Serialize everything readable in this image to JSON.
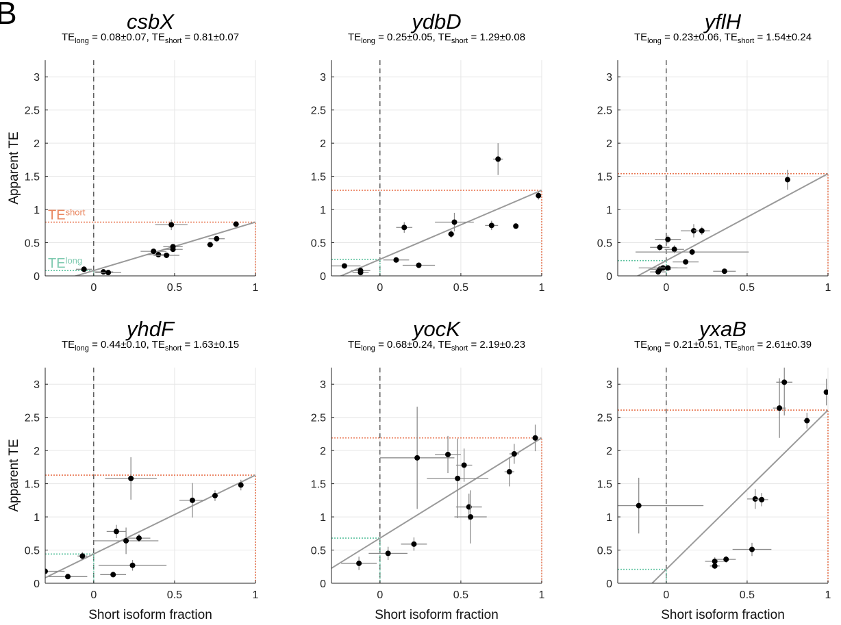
{
  "panel_letter": "B",
  "colors": {
    "fit_line": "#9a9a9a",
    "errorbar": "#8c8c8c",
    "point": "#000000",
    "te_short_line": "#e8744f",
    "te_long_line": "#5cc29f",
    "grid": "#e6e6e6",
    "axis": "#222222"
  },
  "chart_data": [
    {
      "type": "scatter",
      "title": "csbX",
      "subtitle": {
        "te_long": "0.08±0.07",
        "te_short": "0.81±0.07"
      },
      "xlabel": "",
      "ylabel": "Apparent TE",
      "xlim": [
        -0.3,
        1
      ],
      "ylim": [
        0,
        3.25
      ],
      "xticks": [
        0,
        0.5,
        1
      ],
      "yticks": [
        0,
        0.5,
        1,
        1.5,
        2,
        2.5,
        3
      ],
      "xticklabels": [
        "0",
        "0.5",
        "1"
      ],
      "yticklabels": [
        "0",
        "0.5",
        "1",
        "1.5",
        "2",
        "2.5",
        "3"
      ],
      "grid": true,
      "te_long": 0.08,
      "te_short": 0.81,
      "annotations": {
        "te_short": {
          "main": "TE",
          "sub": "short"
        },
        "te_long": {
          "main": "TE",
          "sub": "long"
        }
      },
      "points": [
        {
          "x": -0.06,
          "y": 0.1,
          "xerr": 0.05,
          "yerr": 0.02
        },
        {
          "x": 0.06,
          "y": 0.06,
          "xerr": 0.06,
          "yerr": 0.02
        },
        {
          "x": 0.09,
          "y": 0.05,
          "xerr": 0.08,
          "yerr": 0.02
        },
        {
          "x": 0.48,
          "y": 0.77,
          "xerr": 0.1,
          "yerr": 0.08
        },
        {
          "x": 0.37,
          "y": 0.37,
          "xerr": 0.08,
          "yerr": 0.03
        },
        {
          "x": 0.4,
          "y": 0.32,
          "xerr": 0.07,
          "yerr": 0.03
        },
        {
          "x": 0.45,
          "y": 0.31,
          "xerr": 0.08,
          "yerr": 0.03
        },
        {
          "x": 0.49,
          "y": 0.44,
          "xerr": 0.06,
          "yerr": 0.03
        },
        {
          "x": 0.49,
          "y": 0.4,
          "xerr": 0.06,
          "yerr": 0.03
        },
        {
          "x": 0.72,
          "y": 0.47,
          "xerr": 0.02,
          "yerr": 0.03
        },
        {
          "x": 0.76,
          "y": 0.56,
          "xerr": 0.05,
          "yerr": 0.03
        },
        {
          "x": 0.88,
          "y": 0.78,
          "xerr": 0.02,
          "yerr": 0.04
        }
      ]
    },
    {
      "type": "scatter",
      "title": "ydbD",
      "subtitle": {
        "te_long": "0.25±0.05",
        "te_short": "1.29±0.08"
      },
      "xlabel": "",
      "ylabel": "",
      "xlim": [
        -0.3,
        1
      ],
      "ylim": [
        0,
        3.25
      ],
      "xticks": [
        0,
        0.5,
        1
      ],
      "yticks": [
        0,
        0.5,
        1,
        1.5,
        2,
        2.5,
        3
      ],
      "xticklabels": [
        "0",
        "0.5",
        "1"
      ],
      "yticklabels": [
        "0",
        "0.5",
        "1",
        "1.5",
        "2",
        "2.5",
        "3"
      ],
      "grid": true,
      "te_long": 0.25,
      "te_short": 1.29,
      "points": [
        {
          "x": -0.22,
          "y": 0.15,
          "xerr": 0.1,
          "yerr": 0.03
        },
        {
          "x": -0.12,
          "y": 0.08,
          "xerr": 0.06,
          "yerr": 0.03
        },
        {
          "x": -0.12,
          "y": 0.05,
          "xerr": 0.05,
          "yerr": 0.03
        },
        {
          "x": 0.1,
          "y": 0.24,
          "xerr": 0.08,
          "yerr": 0.04
        },
        {
          "x": 0.24,
          "y": 0.16,
          "xerr": 0.1,
          "yerr": 0.03
        },
        {
          "x": 0.15,
          "y": 0.73,
          "xerr": 0.05,
          "yerr": 0.08
        },
        {
          "x": 0.44,
          "y": 0.63,
          "xerr": 0.02,
          "yerr": 0.06
        },
        {
          "x": 0.46,
          "y": 0.81,
          "xerr": 0.12,
          "yerr": 0.14
        },
        {
          "x": 0.69,
          "y": 0.76,
          "xerr": 0.04,
          "yerr": 0.07
        },
        {
          "x": 0.73,
          "y": 1.76,
          "xerr": 0.03,
          "yerr": 0.24
        },
        {
          "x": 0.84,
          "y": 0.75,
          "xerr": 0.01,
          "yerr": 0.04
        },
        {
          "x": 0.98,
          "y": 1.21,
          "xerr": 0.01,
          "yerr": 0.06
        }
      ]
    },
    {
      "type": "scatter",
      "title": "yflH",
      "subtitle": {
        "te_long": "0.23±0.06",
        "te_short": "1.54±0.24"
      },
      "xlabel": "",
      "ylabel": "",
      "xlim": [
        -0.3,
        1
      ],
      "ylim": [
        0,
        3.25
      ],
      "xticks": [
        0,
        0.5,
        1
      ],
      "yticks": [
        0,
        0.5,
        1,
        1.5,
        2,
        2.5,
        3
      ],
      "xticklabels": [
        "0",
        "0.5",
        "1"
      ],
      "yticklabels": [
        "0",
        "0.5",
        "1",
        "1.5",
        "2",
        "2.5",
        "3"
      ],
      "grid": true,
      "te_long": 0.23,
      "te_short": 1.54,
      "points": [
        {
          "x": -0.05,
          "y": 0.06,
          "xerr": 0.05,
          "yerr": 0.02
        },
        {
          "x": -0.04,
          "y": 0.1,
          "xerr": 0.07,
          "yerr": 0.03
        },
        {
          "x": -0.02,
          "y": 0.12,
          "xerr": 0.15,
          "yerr": 0.03
        },
        {
          "x": 0.01,
          "y": 0.12,
          "xerr": 0.06,
          "yerr": 0.03
        },
        {
          "x": -0.04,
          "y": 0.43,
          "xerr": 0.06,
          "yerr": 0.05
        },
        {
          "x": 0.01,
          "y": 0.55,
          "xerr": 0.08,
          "yerr": 0.06
        },
        {
          "x": 0.05,
          "y": 0.4,
          "xerr": 0.06,
          "yerr": 0.06
        },
        {
          "x": 0.12,
          "y": 0.21,
          "xerr": 0.08,
          "yerr": 0.04
        },
        {
          "x": 0.16,
          "y": 0.36,
          "xerr": 0.35,
          "yerr": 0.05
        },
        {
          "x": 0.17,
          "y": 0.68,
          "xerr": 0.08,
          "yerr": 0.1
        },
        {
          "x": 0.22,
          "y": 0.68,
          "xerr": 0.05,
          "yerr": 0.06
        },
        {
          "x": 0.36,
          "y": 0.07,
          "xerr": 0.07,
          "yerr": 0.02
        },
        {
          "x": 0.75,
          "y": 1.45,
          "xerr": 0.01,
          "yerr": 0.15
        }
      ]
    },
    {
      "type": "scatter",
      "title": "yhdF",
      "subtitle": {
        "te_long": "0.44±0.10",
        "te_short": "1.63±0.15"
      },
      "xlabel": "Short isoform fraction",
      "ylabel": "Apparent TE",
      "xlim": [
        -0.3,
        1
      ],
      "ylim": [
        0,
        3.25
      ],
      "xticks": [
        0,
        0.5,
        1
      ],
      "yticks": [
        0,
        0.5,
        1,
        1.5,
        2,
        2.5,
        3
      ],
      "xticklabels": [
        "0",
        "0.5",
        "1"
      ],
      "yticklabels": [
        "0",
        "0.5",
        "1",
        "1.5",
        "2",
        "2.5",
        "3"
      ],
      "grid": true,
      "te_long": 0.44,
      "te_short": 1.63,
      "points": [
        {
          "x": -0.3,
          "y": 0.18,
          "xerr": 0.12,
          "yerr": 0.04
        },
        {
          "x": -0.16,
          "y": 0.1,
          "xerr": 0.12,
          "yerr": 0.03
        },
        {
          "x": -0.07,
          "y": 0.41,
          "xerr": 0.03,
          "yerr": 0.06
        },
        {
          "x": 0.12,
          "y": 0.13,
          "xerr": 0.08,
          "yerr": 0.04
        },
        {
          "x": 0.14,
          "y": 0.78,
          "xerr": 0.06,
          "yerr": 0.1
        },
        {
          "x": 0.2,
          "y": 0.64,
          "xerr": 0.2,
          "yerr": 0.2
        },
        {
          "x": 0.23,
          "y": 1.58,
          "xerr": 0.16,
          "yerr": 0.32
        },
        {
          "x": 0.24,
          "y": 0.27,
          "xerr": 0.21,
          "yerr": 0.08
        },
        {
          "x": 0.28,
          "y": 0.68,
          "xerr": 0.07,
          "yerr": 0.06
        },
        {
          "x": 0.61,
          "y": 1.25,
          "xerr": 0.08,
          "yerr": 0.26
        },
        {
          "x": 0.75,
          "y": 1.32,
          "xerr": 0.02,
          "yerr": 0.08
        },
        {
          "x": 0.91,
          "y": 1.48,
          "xerr": 0.01,
          "yerr": 0.08
        }
      ]
    },
    {
      "type": "scatter",
      "title": "yocK",
      "subtitle": {
        "te_long": "0.68±0.24",
        "te_short": "2.19±0.23"
      },
      "xlabel": "Short isoform fraction",
      "ylabel": "",
      "xlim": [
        -0.3,
        1
      ],
      "ylim": [
        0,
        3.25
      ],
      "xticks": [
        0,
        0.5,
        1
      ],
      "yticks": [
        0,
        0.5,
        1,
        1.5,
        2,
        2.5,
        3
      ],
      "xticklabels": [
        "0",
        "0.5",
        "1"
      ],
      "yticklabels": [
        "0",
        "0.5",
        "1",
        "1.5",
        "2",
        "2.5",
        "3"
      ],
      "grid": true,
      "te_long": 0.68,
      "te_short": 2.19,
      "points": [
        {
          "x": -0.13,
          "y": 0.3,
          "xerr": 0.11,
          "yerr": 0.1
        },
        {
          "x": 0.05,
          "y": 0.45,
          "xerr": 0.12,
          "yerr": 0.1
        },
        {
          "x": 0.21,
          "y": 0.59,
          "xerr": 0.08,
          "yerr": 0.1
        },
        {
          "x": 0.23,
          "y": 1.89,
          "xerr": 0.23,
          "yerr": 0.77
        },
        {
          "x": 0.42,
          "y": 1.94,
          "xerr": 0.08,
          "yerr": 0.28
        },
        {
          "x": 0.48,
          "y": 1.58,
          "xerr": 0.19,
          "yerr": 0.6
        },
        {
          "x": 0.52,
          "y": 1.78,
          "xerr": 0.05,
          "yerr": 0.25
        },
        {
          "x": 0.55,
          "y": 1.15,
          "xerr": 0.08,
          "yerr": 0.2
        },
        {
          "x": 0.56,
          "y": 1.0,
          "xerr": 0.1,
          "yerr": 0.4
        },
        {
          "x": 0.8,
          "y": 1.68,
          "xerr": 0.03,
          "yerr": 0.22
        },
        {
          "x": 0.83,
          "y": 1.95,
          "xerr": 0.03,
          "yerr": 0.15
        },
        {
          "x": 0.96,
          "y": 2.19,
          "xerr": 0.02,
          "yerr": 0.2
        }
      ]
    },
    {
      "type": "scatter",
      "title": "yxaB",
      "subtitle": {
        "te_long": "0.21±0.51",
        "te_short": "2.61±0.39"
      },
      "xlabel": "Short isoform fraction",
      "ylabel": "",
      "xlim": [
        -0.3,
        1
      ],
      "ylim": [
        0,
        3.25
      ],
      "xticks": [
        0,
        0.5,
        1
      ],
      "yticks": [
        0,
        0.5,
        1,
        1.5,
        2,
        2.5,
        3
      ],
      "xticklabels": [
        "0",
        "0.5",
        "1"
      ],
      "yticklabels": [
        "0",
        "0.5",
        "1",
        "1.5",
        "2",
        "2.5",
        "3"
      ],
      "grid": true,
      "te_long": 0.21,
      "te_short": 2.61,
      "points": [
        {
          "x": -0.17,
          "y": 1.17,
          "xerr": 0.4,
          "yerr": 0.42
        },
        {
          "x": 0.3,
          "y": 0.33,
          "xerr": 0.06,
          "yerr": 0.06
        },
        {
          "x": 0.3,
          "y": 0.26,
          "xerr": 0.03,
          "yerr": 0.04
        },
        {
          "x": 0.37,
          "y": 0.36,
          "xerr": 0.06,
          "yerr": 0.05
        },
        {
          "x": 0.53,
          "y": 0.51,
          "xerr": 0.12,
          "yerr": 0.1
        },
        {
          "x": 0.55,
          "y": 1.27,
          "xerr": 0.05,
          "yerr": 0.15
        },
        {
          "x": 0.59,
          "y": 1.26,
          "xerr": 0.04,
          "yerr": 0.1
        },
        {
          "x": 0.7,
          "y": 2.64,
          "xerr": 0.04,
          "yerr": 0.45
        },
        {
          "x": 0.73,
          "y": 3.03,
          "xerr": 0.05,
          "yerr": 0.5
        },
        {
          "x": 0.87,
          "y": 2.45,
          "xerr": 0.02,
          "yerr": 0.12
        },
        {
          "x": 0.99,
          "y": 2.88,
          "xerr": 0.01,
          "yerr": 0.2
        }
      ]
    }
  ]
}
